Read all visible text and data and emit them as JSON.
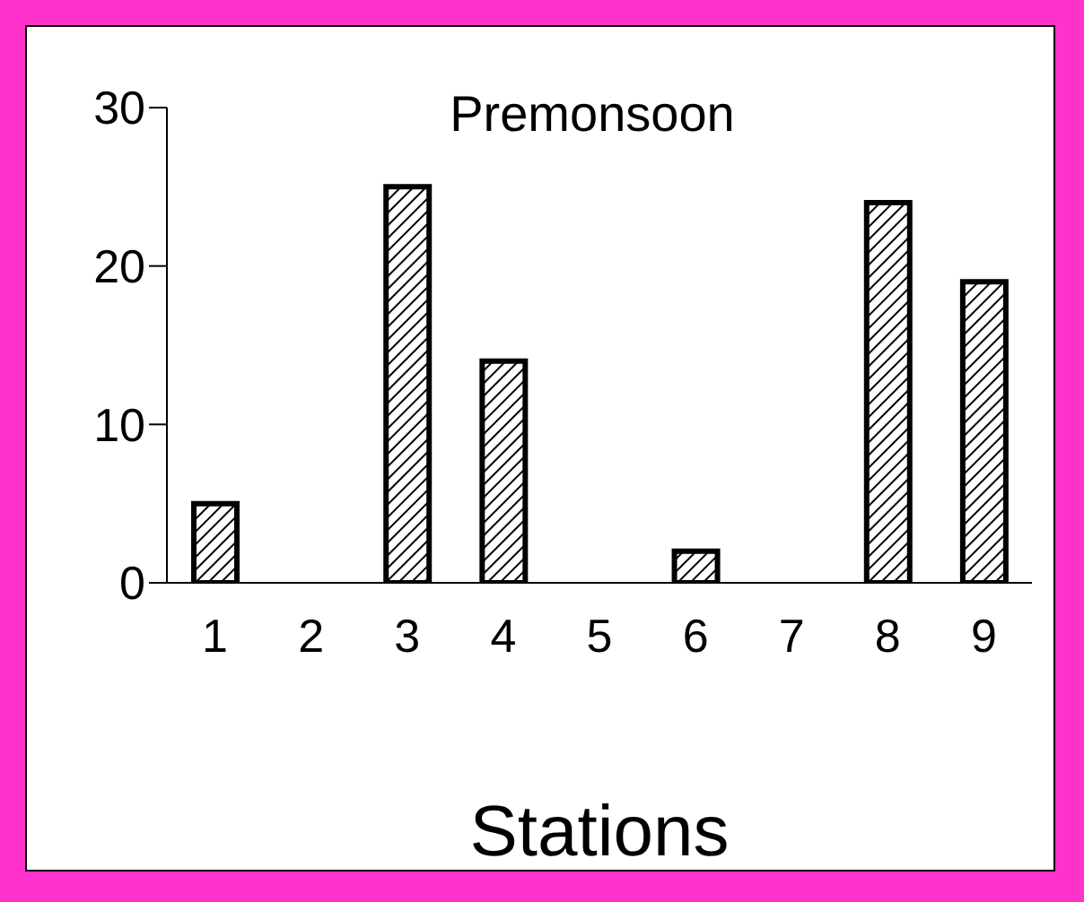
{
  "chart_data": {
    "type": "bar",
    "title": "Premonsoon",
    "xlabel": "Stations",
    "categories": [
      "1",
      "2",
      "3",
      "4",
      "5",
      "6",
      "7",
      "8",
      "9"
    ],
    "values": [
      5,
      0,
      25,
      14,
      0,
      2,
      0,
      24,
      19
    ],
    "color": "#000000",
    "ylim": [
      0,
      30
    ],
    "yticks": [
      0,
      10,
      20,
      30
    ]
  }
}
